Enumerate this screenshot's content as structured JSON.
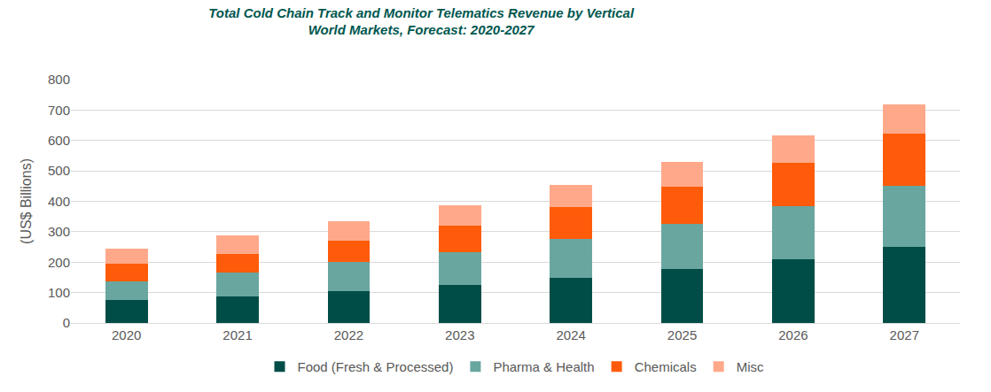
{
  "chart_data": {
    "type": "bar",
    "title": "Total Cold Chain Track and Monitor Telematics Revenue by Vertical",
    "subtitle": "World Markets, Forecast: 2020-2027",
    "y_label": "(US$ Billions)",
    "categories": [
      "2020",
      "2021",
      "2022",
      "2023",
      "2024",
      "2025",
      "2026",
      "2027"
    ],
    "series": [
      {
        "name": "Food (Fresh & Processed)",
        "color": "#004d47",
        "values": [
          75,
          87,
          105,
          125,
          148,
          177,
          210,
          250
        ]
      },
      {
        "name": "Pharma & Health",
        "color": "#6aa6a0",
        "values": [
          62,
          78,
          95,
          108,
          127,
          148,
          175,
          202
        ]
      },
      {
        "name": "Chemicals",
        "color": "#ff5b0a",
        "values": [
          57,
          63,
          72,
          87,
          105,
          122,
          141,
          170
        ]
      },
      {
        "name": "Misc",
        "color": "#ffa98a",
        "values": [
          51,
          59,
          63,
          68,
          73,
          83,
          92,
          98
        ]
      }
    ],
    "stacked": true,
    "ylim": [
      0,
      800
    ],
    "yticks": [
      0,
      100,
      200,
      300,
      400,
      500,
      600,
      700,
      800
    ],
    "grid": true,
    "legend": "bottom"
  }
}
